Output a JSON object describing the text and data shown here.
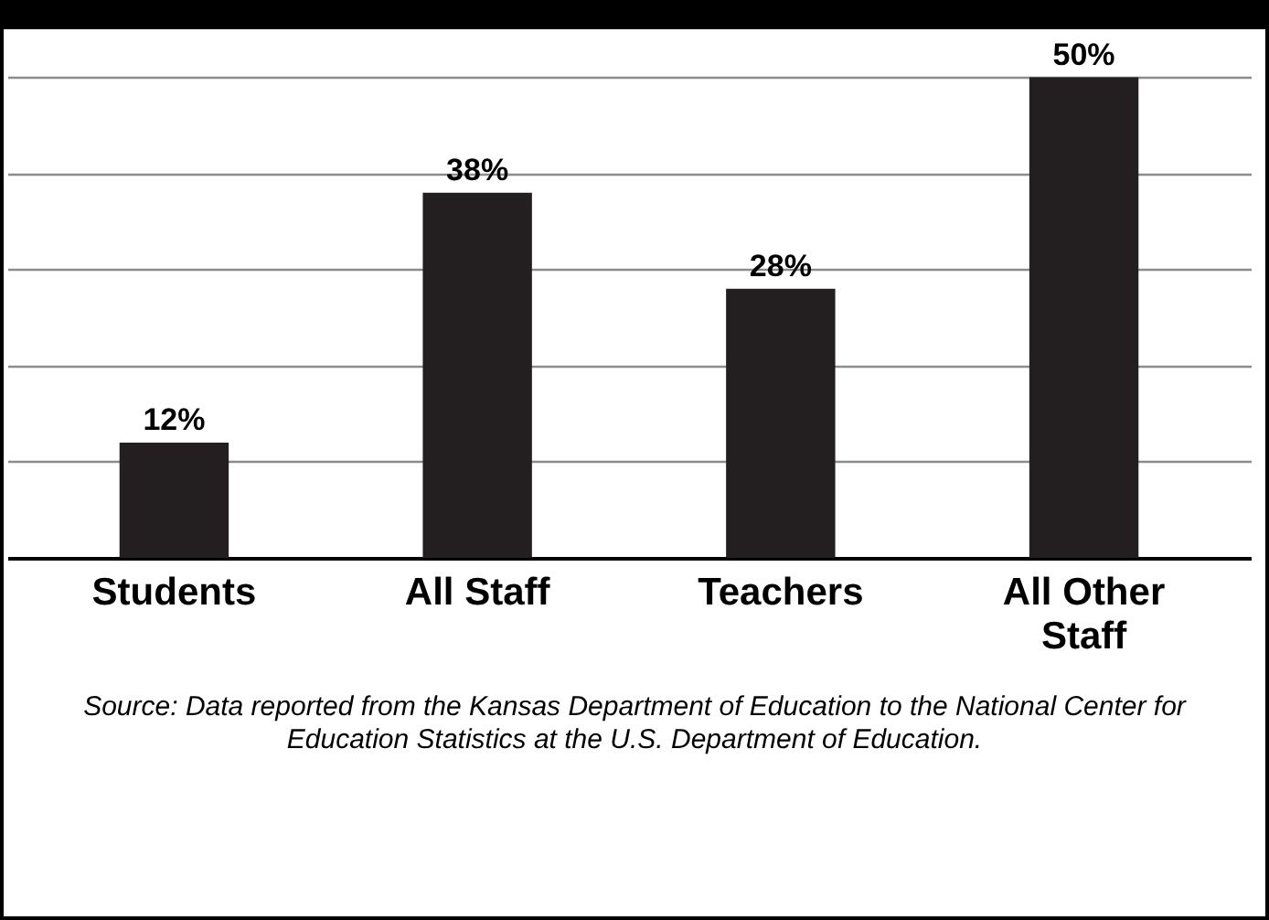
{
  "chart_data": {
    "type": "bar",
    "categories": [
      "Students",
      "All Staff",
      "Teachers",
      "All Other Staff"
    ],
    "values": [
      12,
      38,
      28,
      50
    ],
    "color": "#231f20",
    "data_labels": true,
    "value_labels": [
      "12%",
      "38%",
      "28%",
      "50%"
    ],
    "ylim": [
      0,
      55
    ],
    "yticks": [
      {
        "value": 0,
        "label": null
      },
      {
        "value": 10,
        "label": null
      },
      {
        "value": 20,
        "label": null
      },
      {
        "value": 30,
        "label": null
      },
      {
        "value": 40,
        "label": null
      },
      {
        "value": 50,
        "label": null
      }
    ],
    "grid": "y",
    "tick_labels": "x",
    "annotations": [
      "Source: Data reported from the Kansas Department of Education to the National Center for Education Statistics at the U.S. Department of Education."
    ]
  }
}
